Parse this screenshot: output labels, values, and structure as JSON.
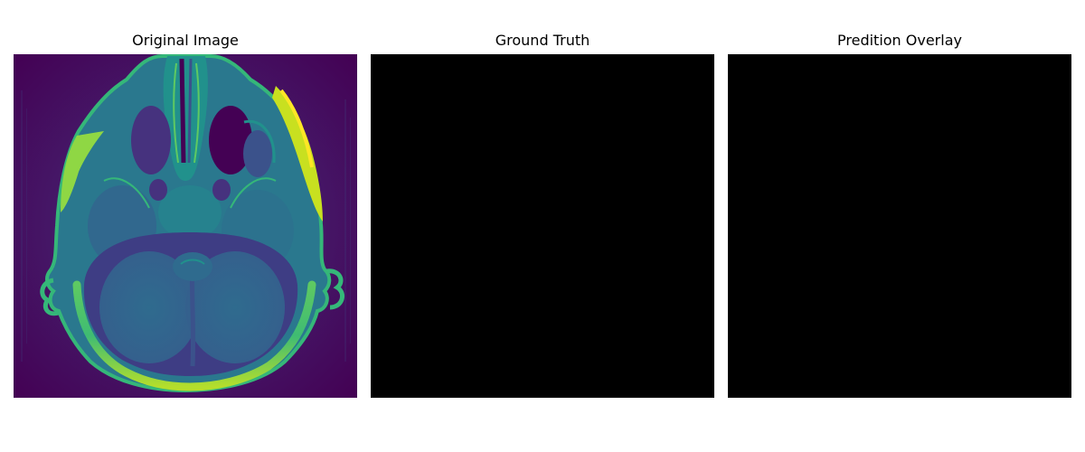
{
  "panels": [
    {
      "title": "Original Image",
      "content": "mri-axial-slice"
    },
    {
      "title": "Ground Truth",
      "content": "empty-mask"
    },
    {
      "title": "Predition Overlay",
      "content": "empty-overlay"
    }
  ],
  "colors": {
    "background": "#ffffff",
    "viridis_low": "#440154",
    "viridis_mid": "#3b528b",
    "viridis_teal": "#21918c",
    "viridis_green": "#5ec962",
    "viridis_high": "#fde725",
    "mask_fill": "#000000"
  }
}
